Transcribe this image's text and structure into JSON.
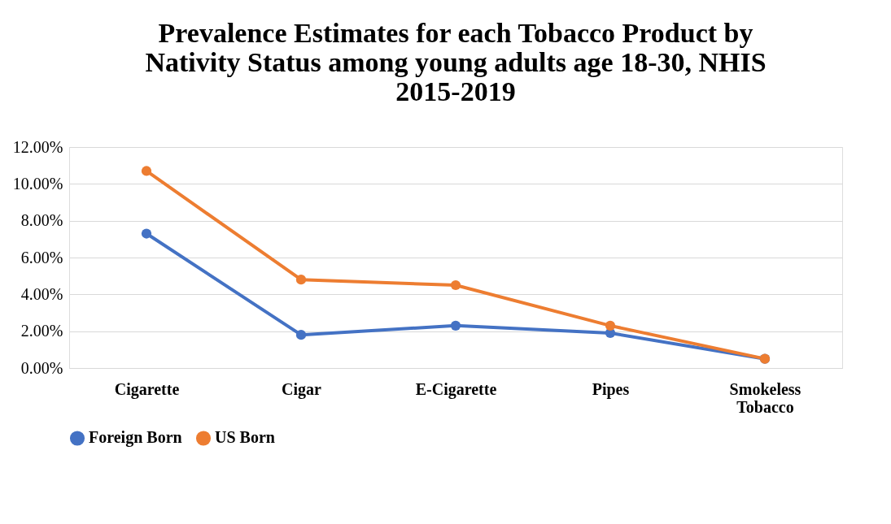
{
  "chart_data": {
    "type": "line",
    "title": "Prevalence Estimates for each Tobacco Product by Nativity Status among young adults age 18-30, NHIS 2015-2019",
    "categories": [
      "Cigarette",
      "Cigar",
      "E-Cigarette",
      "Pipes",
      "Smokeless Tobacco"
    ],
    "series": [
      {
        "name": "Foreign Born",
        "color": "#4472c4",
        "values": [
          7.3,
          1.8,
          2.3,
          1.9,
          0.5
        ]
      },
      {
        "name": "US Born",
        "color": "#ed7d31",
        "values": [
          10.7,
          4.8,
          4.5,
          2.3,
          0.5
        ]
      }
    ],
    "ylim": [
      0,
      12
    ],
    "yticks": [
      {
        "value": 0,
        "label": "0.00%"
      },
      {
        "value": 2,
        "label": "2.00%"
      },
      {
        "value": 4,
        "label": "4.00%"
      },
      {
        "value": 6,
        "label": "6.00%"
      },
      {
        "value": 8,
        "label": "8.00%"
      },
      {
        "value": 10,
        "label": "10.00%"
      },
      {
        "value": 12,
        "label": "12.00%"
      }
    ],
    "grid": "y",
    "legend": "bottom",
    "marker": "circle",
    "line_style": "solid"
  }
}
